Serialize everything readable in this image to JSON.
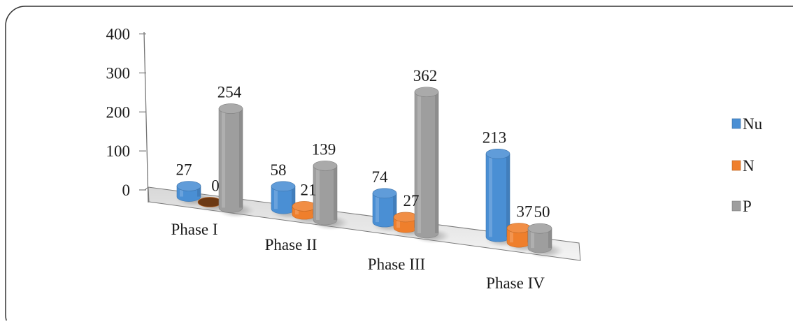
{
  "chart_data": {
    "type": "bar",
    "style": "3d-cylinder",
    "categories": [
      "Phase I",
      "Phase II",
      "Phase III",
      "Phase IV"
    ],
    "series": [
      {
        "name": "Nu",
        "values": [
          27,
          58,
          74,
          213
        ],
        "color": "#4a8fd4"
      },
      {
        "name": "N",
        "values": [
          0,
          21,
          27,
          37
        ],
        "color": "#ef7f2c"
      },
      {
        "name": "P",
        "values": [
          254,
          139,
          362,
          50
        ],
        "color": "#9e9e9e"
      }
    ],
    "y_ticks": [
      "0",
      "100",
      "200",
      "300",
      "400"
    ],
    "ylim": [
      0,
      400
    ],
    "legend_position": "right",
    "grid": false,
    "data_labels": true
  }
}
